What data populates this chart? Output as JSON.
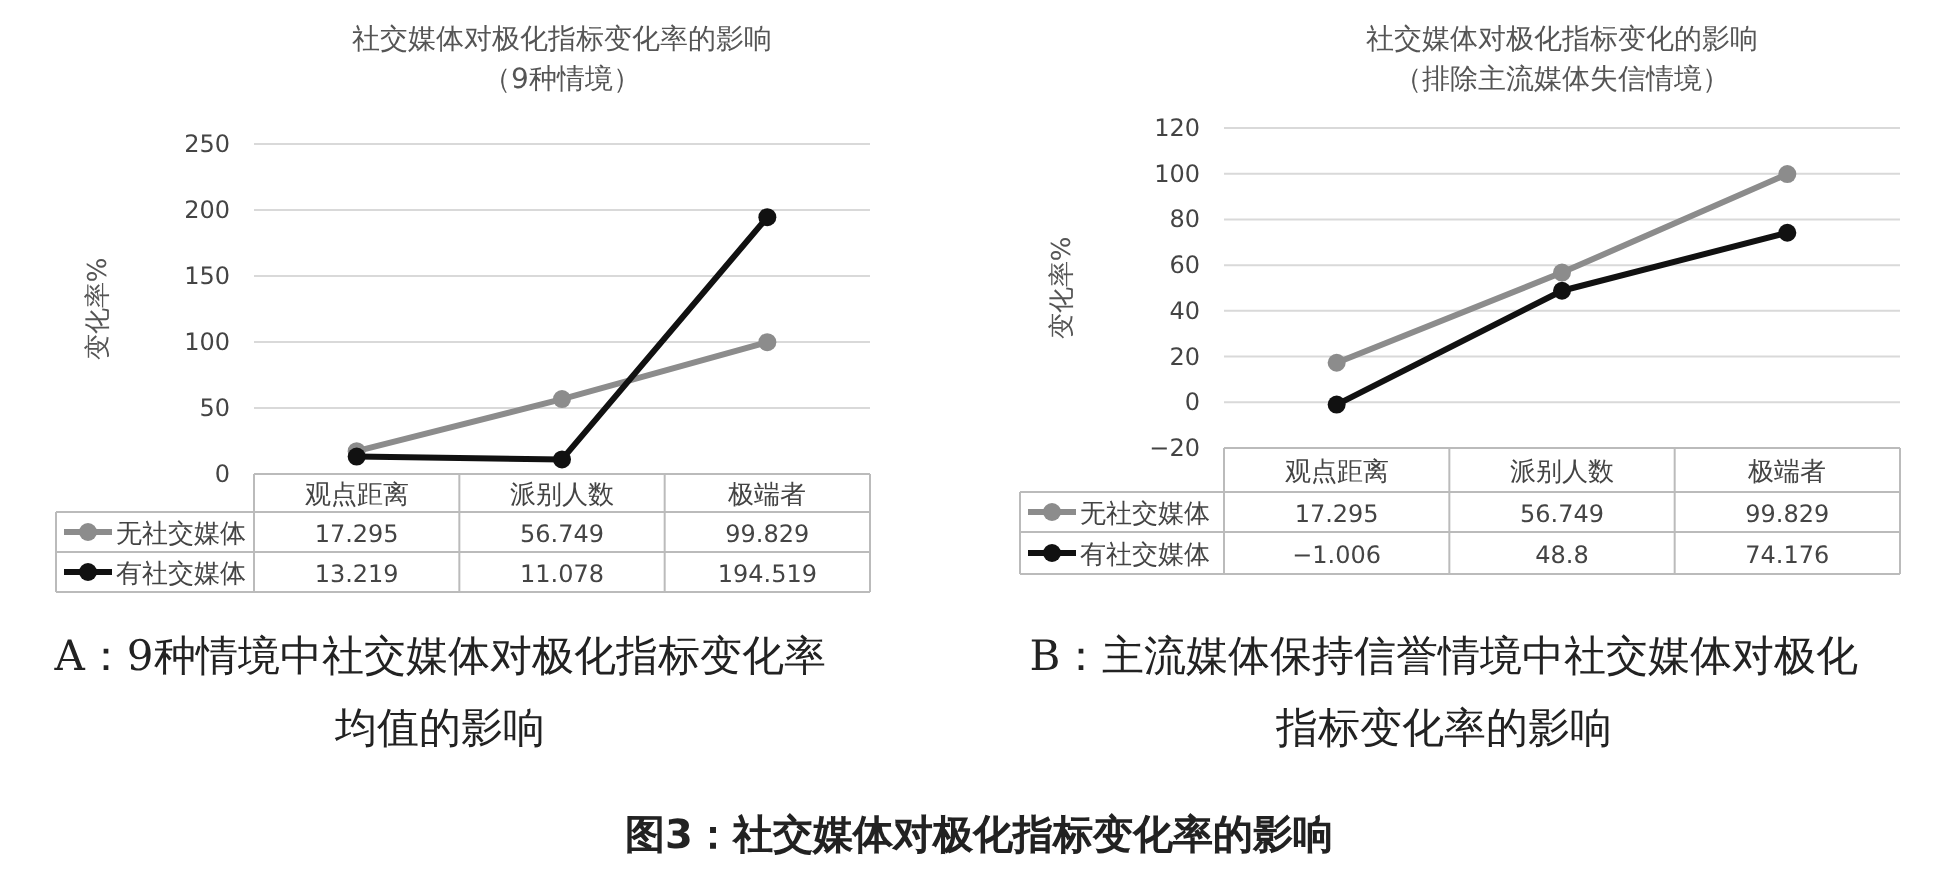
{
  "chart_data": [
    {
      "type": "line",
      "title": "社交媒体对极化指标变化率的影响",
      "subtitle": "（9种情境）",
      "ylabel": "变化率%",
      "categories": [
        "观点距离",
        "派别人数",
        "极端者"
      ],
      "series": [
        {
          "name": "无社交媒体",
          "color": "#8c8c8c",
          "values": [
            17.295,
            56.749,
            99.829
          ]
        },
        {
          "name": "有社交媒体",
          "color": "#111111",
          "values": [
            13.219,
            11.078,
            194.519
          ]
        }
      ],
      "ylim": [
        0,
        250
      ],
      "yticks": [
        0,
        50,
        100,
        150,
        200,
        250
      ],
      "grid": "y",
      "marker": "circle",
      "data_labels": true,
      "legend": "bottom",
      "annotations": [
        "A：9种情境中社交媒体对极化指标变化率均值的影响",
        "图3：社交媒体对极化指标变化率的影响"
      ]
    },
    {
      "type": "line",
      "title": "社交媒体对极化指标变化的影响",
      "subtitle": "（排除主流媒体失信情境）",
      "ylabel": "变化率%",
      "categories": [
        "观点距离",
        "派别人数",
        "极端者"
      ],
      "series": [
        {
          "name": "无社交媒体",
          "color": "#8c8c8c",
          "values": [
            17.295,
            56.749,
            99.829
          ]
        },
        {
          "name": "有社交媒体",
          "color": "#111111",
          "values": [
            -1.006,
            48.8,
            74.176
          ]
        }
      ],
      "ylim": [
        -20,
        120
      ],
      "yticks": [
        -20,
        0,
        20,
        40,
        60,
        80,
        100,
        120
      ],
      "grid": "y",
      "marker": "circle",
      "data_labels": true,
      "legend": "bottom",
      "annotations": [
        "B：主流媒体保持信誉情境中社交媒体对极化指标变化率的影响"
      ]
    }
  ]
}
